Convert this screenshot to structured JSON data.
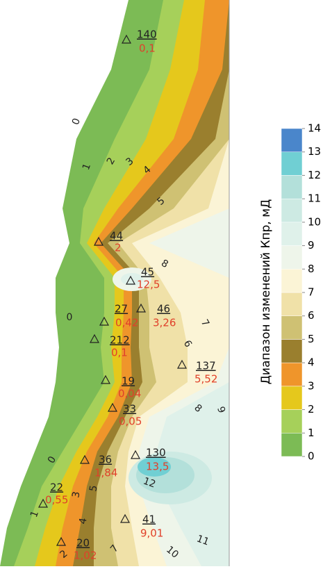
{
  "colorbar": {
    "title": "Диапазон изменений Кпр, мД",
    "ticks": [
      0,
      1,
      2,
      3,
      4,
      5,
      6,
      7,
      8,
      9,
      10,
      11,
      12,
      13,
      14
    ],
    "colors": [
      "#7cbb55",
      "#a6d05a",
      "#e5c81c",
      "#ef952b",
      "#9a7f2e",
      "#cfc173",
      "#f0e1a8",
      "#fbf4d6",
      "#eef5ea",
      "#dff1ea",
      "#cdeae3",
      "#b3e0da",
      "#70cfd3",
      "#4a86cb"
    ]
  },
  "wells": [
    {
      "id": "140",
      "value": "0,1"
    },
    {
      "id": "44",
      "value": "2"
    },
    {
      "id": "45",
      "value": "12,5"
    },
    {
      "id": "27",
      "value": "0,42"
    },
    {
      "id": "46",
      "value": "3,26"
    },
    {
      "id": "212",
      "value": "0,1"
    },
    {
      "id": "137",
      "value": "5,52"
    },
    {
      "id": "19",
      "value": "0,04"
    },
    {
      "id": "33",
      "value": "0,05"
    },
    {
      "id": "130",
      "value": "13,5"
    },
    {
      "id": "36",
      "value": "1,84"
    },
    {
      "id": "22",
      "value": "0,55"
    },
    {
      "id": "41",
      "value": "9,01"
    },
    {
      "id": "20",
      "value": "1,02"
    }
  ],
  "contour_labels": [
    "0",
    "1",
    "2",
    "3",
    "4",
    "5",
    "8",
    "0",
    "7",
    "6",
    "8",
    "9",
    "0",
    "12",
    "1",
    "2",
    "3",
    "4",
    "5",
    "7",
    "10",
    "11"
  ]
}
